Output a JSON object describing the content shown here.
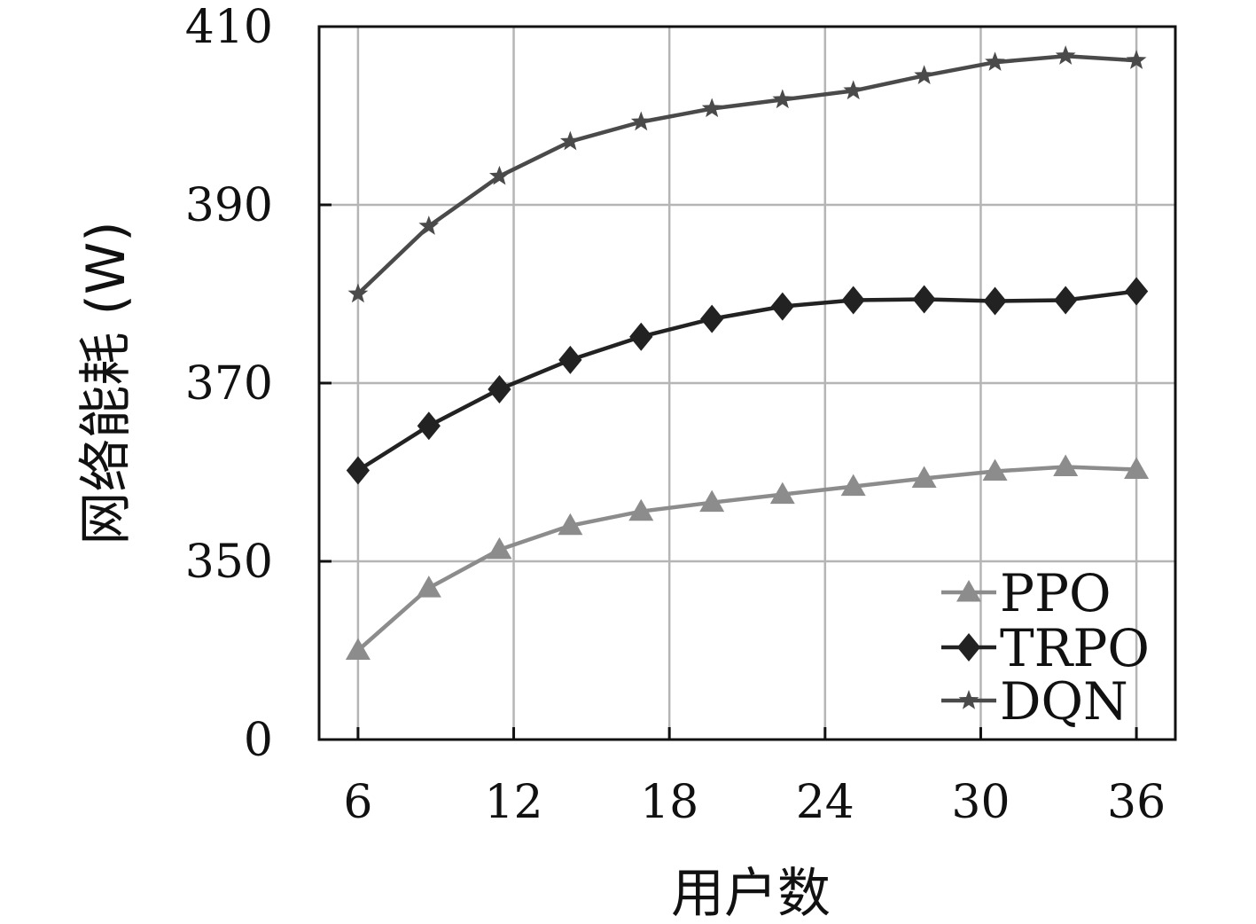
{
  "chart_data": {
    "type": "line",
    "xlabel": "用户数",
    "ylabel": "网络能耗 (W)",
    "x_ticks": [
      "6",
      "12",
      "18",
      "24",
      "30",
      "36"
    ],
    "y_ticks": [
      "0",
      "350",
      "370",
      "390",
      "410"
    ],
    "xlim": [
      4.5,
      37.5
    ],
    "ylim_broken": {
      "displayed_bottom_label": "0",
      "range_above_break": [
        330,
        410
      ]
    },
    "grid": true,
    "legend_position": "bottom-right",
    "x": [
      6,
      8.73,
      11.45,
      14.18,
      16.91,
      19.64,
      22.36,
      25.09,
      27.82,
      30.55,
      33.27,
      36
    ],
    "series": [
      {
        "name": "PPO",
        "color": "#8c8c8c",
        "marker": "triangle",
        "values": [
          340.0,
          347.0,
          351.3,
          354.0,
          355.6,
          356.6,
          357.5,
          358.4,
          359.3,
          360.1,
          360.6,
          360.3
        ]
      },
      {
        "name": "TRPO",
        "color": "#222222",
        "marker": "diamond",
        "values": [
          360.2,
          365.2,
          369.3,
          372.6,
          375.2,
          377.2,
          378.6,
          379.3,
          379.4,
          379.2,
          379.3,
          380.3
        ]
      },
      {
        "name": "DQN",
        "color": "#4a4a4a",
        "marker": "star",
        "values": [
          380.0,
          387.6,
          393.2,
          397.1,
          399.3,
          400.8,
          401.8,
          402.8,
          404.5,
          406.0,
          406.7,
          406.2
        ]
      }
    ]
  }
}
